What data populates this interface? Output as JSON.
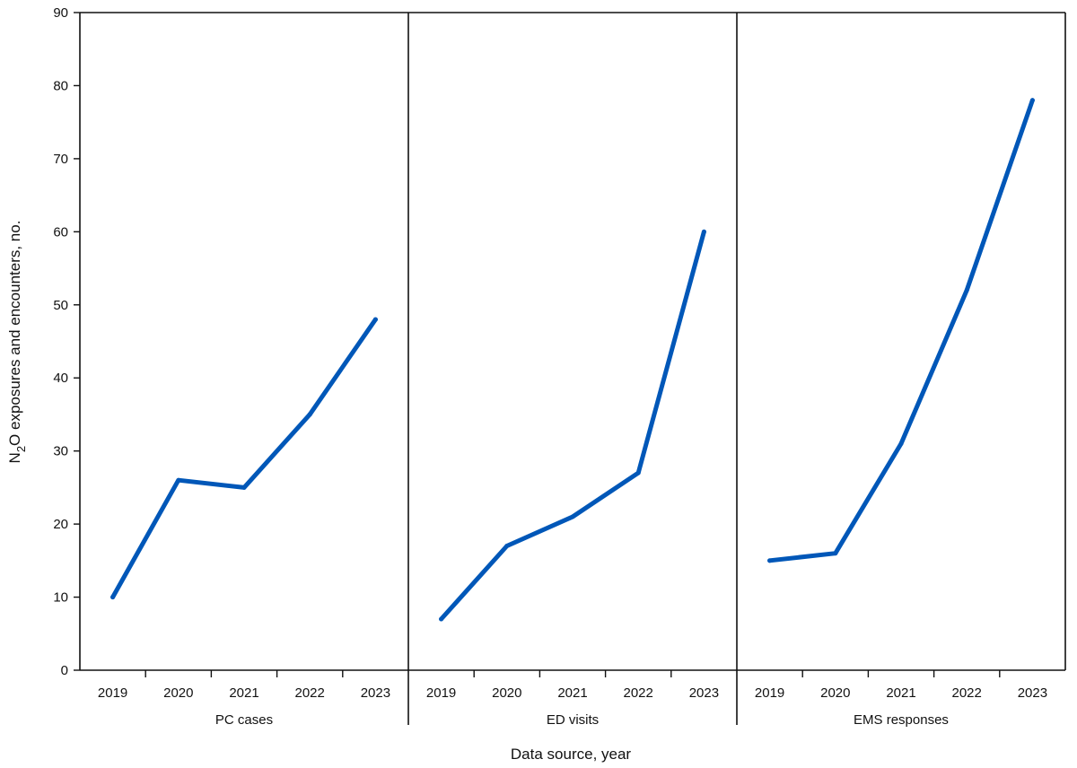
{
  "chart_data": {
    "type": "line",
    "xlabel": "Data source, year",
    "ylabel_main": "N",
    "ylabel_sub": "2",
    "ylabel_rest": "O exposures and encounters, no.",
    "ylim": [
      0,
      90
    ],
    "yticks": [
      "0",
      "10",
      "20",
      "30",
      "40",
      "50",
      "60",
      "70",
      "80",
      "90"
    ],
    "grid": false,
    "line_color": "#0057b8",
    "panels": [
      {
        "label": "PC cases",
        "categories": [
          "2019",
          "2020",
          "2021",
          "2022",
          "2023"
        ],
        "values": [
          10,
          26,
          25,
          35,
          48
        ]
      },
      {
        "label": "ED visits",
        "categories": [
          "2019",
          "2020",
          "2021",
          "2022",
          "2023"
        ],
        "values": [
          7,
          17,
          21,
          27,
          60
        ]
      },
      {
        "label": "EMS responses",
        "categories": [
          "2019",
          "2020",
          "2021",
          "2022",
          "2023"
        ],
        "values": [
          15,
          16,
          31,
          52,
          78
        ]
      }
    ]
  }
}
